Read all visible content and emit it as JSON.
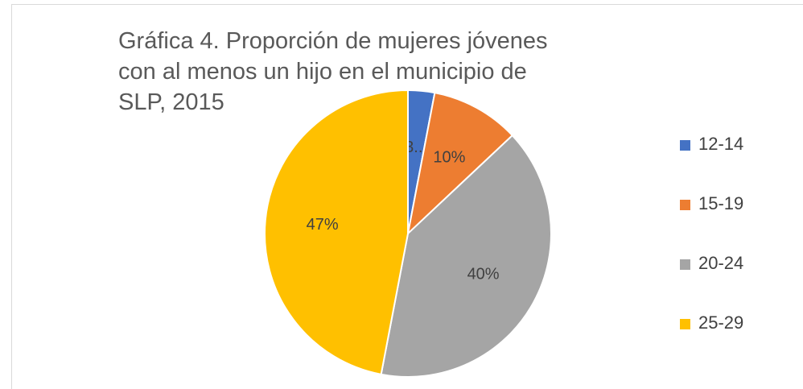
{
  "chart_data": {
    "type": "pie",
    "title": "Gráfica 4. Proporción de mujeres jóvenes con al menos un hijo en el municipio de SLP, 2015",
    "categories": [
      "12-14",
      "15-19",
      "20-24",
      "25-29"
    ],
    "values": [
      3,
      10,
      40,
      47
    ],
    "value_labels": [
      "3...",
      "10%",
      "40%",
      "47%"
    ],
    "colors": [
      "#4472c4",
      "#ed7d31",
      "#a5a5a5",
      "#ffc000"
    ],
    "legend": "right"
  }
}
